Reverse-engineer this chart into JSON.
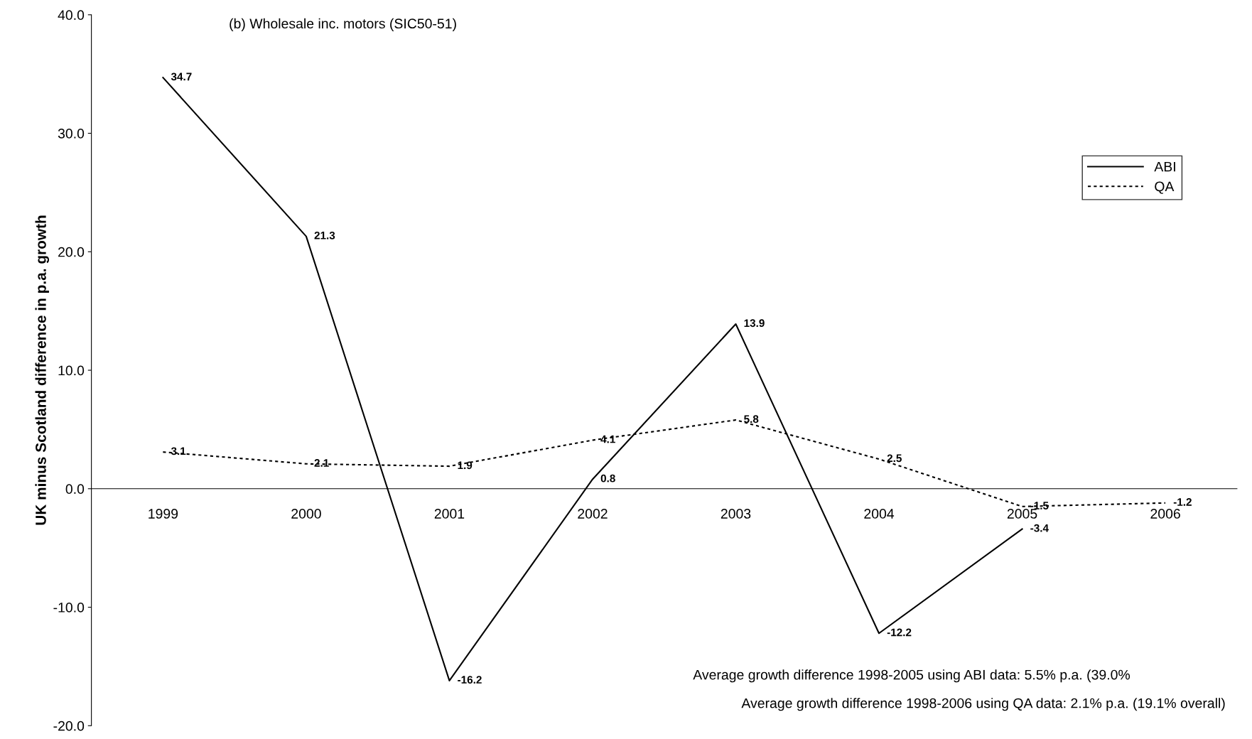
{
  "chart_data": {
    "type": "line",
    "title": "(b) Wholesale inc. motors (SIC50-51)",
    "ylabel": "UK minus Scotland difference in p.a. growth",
    "categories": [
      "1999",
      "2000",
      "2001",
      "2002",
      "2003",
      "2004",
      "2005",
      "2006"
    ],
    "series": [
      {
        "name": "ABI",
        "color": "#000000",
        "line_style": "solid",
        "values": [
          34.7,
          21.3,
          -16.2,
          0.8,
          13.9,
          -12.2,
          -3.4,
          null
        ]
      },
      {
        "name": "QA",
        "color": "#000000",
        "line_style": "dotted",
        "values": [
          3.1,
          2.1,
          1.9,
          4.1,
          5.8,
          2.5,
          -1.5,
          -1.2
        ]
      }
    ],
    "ylim": [
      -20,
      40
    ],
    "yticks": [
      {
        "value": -20,
        "label": "-20.0"
      },
      {
        "value": -10,
        "label": "-10.0"
      },
      {
        "value": 0,
        "label": "0.0"
      },
      {
        "value": 10,
        "label": "10.0"
      },
      {
        "value": 20,
        "label": "20.0"
      },
      {
        "value": 30,
        "label": "30.0"
      },
      {
        "value": 40,
        "label": "40.0"
      }
    ],
    "data_labels": true,
    "grid": false,
    "legend": "top right",
    "marker": "none",
    "annotations": [
      "Average growth difference 1998-2005 using ABI data: 5.5% p.a. (39.0%",
      "Average growth difference 1998-2006 using QA data: 2.1% p.a. (19.1% overall)"
    ]
  }
}
